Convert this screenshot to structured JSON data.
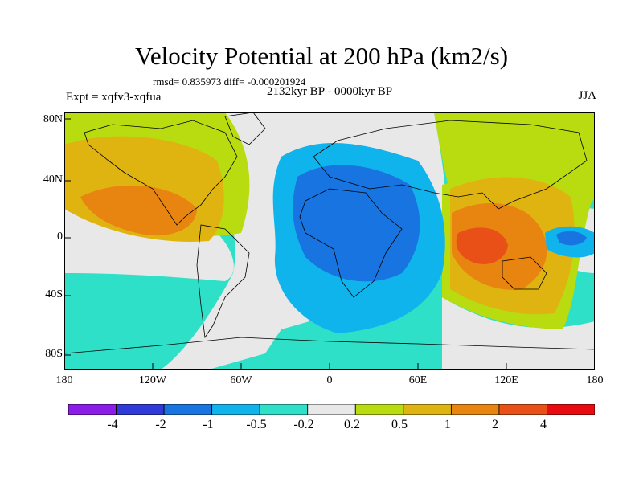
{
  "header": {
    "title": "Velocity Potential at 200 hPa (km2/s)",
    "stats": "rmsd= 0.835973  diff= -0.000201924",
    "period": "2132kyr BP - 0000kyr BP",
    "experiment": "Expt = xqfv3-xqfua",
    "season": "JJA"
  },
  "axes": {
    "lat_labels": [
      "80N",
      "40N",
      "0",
      "40S",
      "80S"
    ],
    "lon_labels": [
      "180",
      "120W",
      "60W",
      "0",
      "60E",
      "120E",
      "180"
    ]
  },
  "colorbar": {
    "labels": [
      "-4",
      "-2",
      "-1",
      "-0.5",
      "-0.2",
      "0.2",
      "0.5",
      "1",
      "2",
      "4"
    ],
    "colors": [
      "#8c1ce8",
      "#2f3ad8",
      "#1874e0",
      "#10b4ec",
      "#2fe0c8",
      "#e8e8e8",
      "#b8dc10",
      "#e0b410",
      "#e88410",
      "#e85018",
      "#e80c10"
    ]
  },
  "chart_data": {
    "type": "heatmap",
    "title": "Velocity Potential at 200 hPa (km2/s)",
    "projection": "cylindrical equidistant",
    "xlim": [
      -180,
      180
    ],
    "ylim": [
      -90,
      90
    ],
    "levels": [
      -4,
      -2,
      -1,
      -0.5,
      -0.2,
      0.2,
      0.5,
      1,
      2,
      4
    ],
    "features": [
      {
        "region": "Africa / Indian Ocean",
        "value_range": [
          -2,
          -1
        ]
      },
      {
        "region": "Atlantic Ocean",
        "value_range": [
          -1,
          -0.5
        ]
      },
      {
        "region": "Maritime Continent / Western Pacific",
        "value_range": [
          2,
          4
        ]
      },
      {
        "region": "Eastern North Pacific",
        "value_range": [
          1,
          2
        ]
      },
      {
        "region": "Central tropical Pacific",
        "value_range": [
          -1,
          -0.5
        ]
      }
    ]
  }
}
